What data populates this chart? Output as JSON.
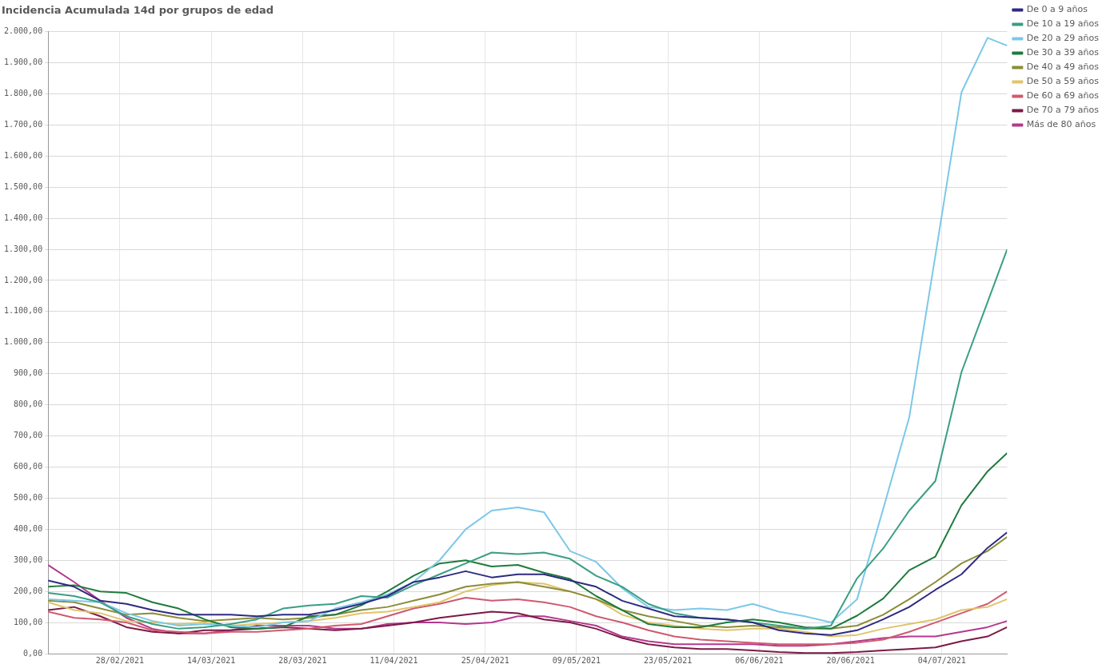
{
  "chart_data": {
    "type": "line",
    "title": "Incidencia Acumulada 14d por grupos de edad",
    "x": [
      "2021-02-17",
      "2021-02-21",
      "2021-02-25",
      "2021-03-01",
      "2021-03-05",
      "2021-03-09",
      "2021-03-13",
      "2021-03-17",
      "2021-03-21",
      "2021-03-25",
      "2021-03-29",
      "2021-04-02",
      "2021-04-06",
      "2021-04-10",
      "2021-04-14",
      "2021-04-18",
      "2021-04-22",
      "2021-04-26",
      "2021-04-30",
      "2021-05-04",
      "2021-05-08",
      "2021-05-12",
      "2021-05-16",
      "2021-05-20",
      "2021-05-24",
      "2021-05-28",
      "2021-06-01",
      "2021-06-05",
      "2021-06-09",
      "2021-06-13",
      "2021-06-17",
      "2021-06-21",
      "2021-06-25",
      "2021-06-29",
      "2021-07-03",
      "2021-07-07",
      "2021-07-11",
      "2021-07-14"
    ],
    "xlim": [
      "2021-02-17",
      "2021-07-14"
    ],
    "xticks": [
      {
        "value": "2021-02-28",
        "label": "28/02/2021"
      },
      {
        "value": "2021-03-14",
        "label": "14/03/2021"
      },
      {
        "value": "2021-03-28",
        "label": "28/03/2021"
      },
      {
        "value": "2021-04-11",
        "label": "11/04/2021"
      },
      {
        "value": "2021-04-25",
        "label": "25/04/2021"
      },
      {
        "value": "2021-05-09",
        "label": "09/05/2021"
      },
      {
        "value": "2021-05-23",
        "label": "23/05/2021"
      },
      {
        "value": "2021-06-06",
        "label": "06/06/2021"
      },
      {
        "value": "2021-06-20",
        "label": "20/06/2021"
      },
      {
        "value": "2021-07-04",
        "label": "04/07/2021"
      }
    ],
    "ylim": [
      0,
      2000
    ],
    "yticks": [
      {
        "value": 0,
        "label": "0,00"
      },
      {
        "value": 100,
        "label": "100,00"
      },
      {
        "value": 200,
        "label": "200,00"
      },
      {
        "value": 300,
        "label": "300,00"
      },
      {
        "value": 400,
        "label": "400,00"
      },
      {
        "value": 500,
        "label": "500,00"
      },
      {
        "value": 600,
        "label": "600,00"
      },
      {
        "value": 700,
        "label": "700,00"
      },
      {
        "value": 800,
        "label": "800,00"
      },
      {
        "value": 900,
        "label": "900,00"
      },
      {
        "value": 1000,
        "label": "1.000,00"
      },
      {
        "value": 1100,
        "label": "1.100,00"
      },
      {
        "value": 1200,
        "label": "1.200,00"
      },
      {
        "value": 1300,
        "label": "1.300,00"
      },
      {
        "value": 1400,
        "label": "1.400,00"
      },
      {
        "value": 1500,
        "label": "1.500,00"
      },
      {
        "value": 1600,
        "label": "1.600,00"
      },
      {
        "value": 1700,
        "label": "1.700,00"
      },
      {
        "value": 1800,
        "label": "1.800,00"
      },
      {
        "value": 1900,
        "label": "1.900,00"
      },
      {
        "value": 2000,
        "label": "2.000,00"
      }
    ],
    "grid": true,
    "legend": "right",
    "marker": "none",
    "line_style": "solid",
    "series": [
      {
        "name": "De 0 a 9 años",
        "color": "#2e2a80",
        "values": [
          235,
          215,
          170,
          160,
          140,
          125,
          125,
          125,
          120,
          125,
          125,
          140,
          160,
          185,
          230,
          245,
          265,
          245,
          255,
          255,
          235,
          215,
          170,
          145,
          120,
          115,
          110,
          100,
          75,
          65,
          60,
          75,
          110,
          150,
          205,
          255,
          340,
          390
        ]
      },
      {
        "name": "De 10 a 19 años",
        "color": "#3a9e84",
        "values": [
          195,
          185,
          165,
          120,
          95,
          80,
          85,
          95,
          110,
          145,
          155,
          160,
          185,
          180,
          220,
          255,
          290,
          325,
          320,
          325,
          305,
          250,
          215,
          160,
          130,
          115,
          110,
          100,
          90,
          80,
          90,
          242,
          338,
          460,
          555,
          905,
          1130,
          1300
        ]
      },
      {
        "name": "De 20 a 29 años",
        "color": "#7cc8e8",
        "values": [
          175,
          170,
          165,
          130,
          105,
          90,
          95,
          90,
          85,
          100,
          105,
          145,
          165,
          190,
          230,
          300,
          400,
          460,
          470,
          455,
          330,
          295,
          210,
          150,
          140,
          145,
          140,
          160,
          135,
          120,
          100,
          175,
          465,
          760,
          1280,
          1805,
          1980,
          1955
        ]
      },
      {
        "name": "De 30 a 39 años",
        "color": "#1e7b3c",
        "values": [
          215,
          220,
          200,
          195,
          165,
          145,
          110,
          85,
          80,
          85,
          120,
          125,
          155,
          200,
          250,
          290,
          300,
          280,
          285,
          260,
          240,
          185,
          140,
          95,
          85,
          85,
          100,
          110,
          100,
          85,
          80,
          122,
          177,
          268,
          312,
          477,
          586,
          645
        ]
      },
      {
        "name": "De 40 a 49 años",
        "color": "#8c8c3a",
        "values": [
          170,
          165,
          145,
          125,
          130,
          115,
          105,
          110,
          115,
          110,
          115,
          125,
          140,
          150,
          170,
          190,
          215,
          225,
          230,
          215,
          200,
          175,
          140,
          120,
          105,
          90,
          85,
          90,
          85,
          80,
          80,
          90,
          125,
          175,
          230,
          290,
          330,
          375
        ]
      },
      {
        "name": "De 50 a 59 años",
        "color": "#e0c46c",
        "values": [
          165,
          140,
          130,
          105,
          100,
          95,
          100,
          90,
          95,
          100,
          105,
          115,
          130,
          135,
          150,
          165,
          200,
          220,
          230,
          225,
          200,
          175,
          125,
          100,
          90,
          80,
          75,
          80,
          80,
          70,
          55,
          60,
          80,
          95,
          110,
          140,
          150,
          175
        ]
      },
      {
        "name": "De 60 a 69 años",
        "color": "#cf5a6e",
        "values": [
          135,
          115,
          110,
          100,
          75,
          70,
          65,
          70,
          70,
          75,
          80,
          90,
          95,
          120,
          145,
          160,
          180,
          170,
          175,
          165,
          150,
          120,
          100,
          75,
          55,
          45,
          40,
          35,
          30,
          30,
          30,
          35,
          45,
          70,
          100,
          130,
          160,
          200
        ]
      },
      {
        "name": "De 70 a 79 años",
        "color": "#7b1a45",
        "values": [
          140,
          150,
          120,
          85,
          70,
          65,
          75,
          75,
          80,
          85,
          80,
          75,
          80,
          90,
          100,
          115,
          125,
          135,
          130,
          110,
          100,
          80,
          50,
          30,
          20,
          15,
          15,
          10,
          5,
          2,
          2,
          5,
          10,
          15,
          20,
          40,
          55,
          85
        ]
      },
      {
        "name": "Más de 80 años",
        "color": "#b5388e",
        "values": [
          285,
          230,
          170,
          115,
          80,
          65,
          65,
          75,
          90,
          90,
          90,
          80,
          80,
          95,
          100,
          100,
          95,
          100,
          120,
          120,
          105,
          90,
          55,
          40,
          30,
          30,
          30,
          30,
          25,
          25,
          30,
          40,
          50,
          55,
          55,
          70,
          85,
          105
        ]
      }
    ]
  }
}
